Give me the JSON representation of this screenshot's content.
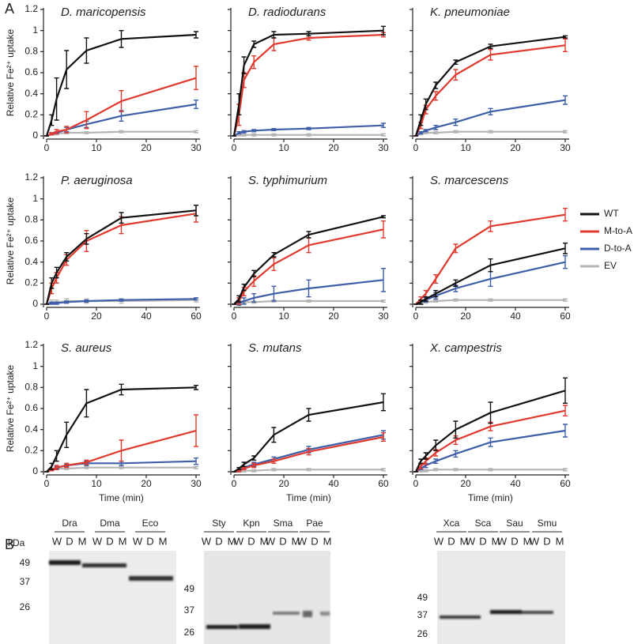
{
  "panel_labels": [
    "A",
    "B"
  ],
  "legend": [
    {
      "name": "WT",
      "color": "#111111"
    },
    {
      "name": "M-to-A",
      "color": "#e0392e"
    },
    {
      "name": "D-to-A",
      "color": "#3e5ea8"
    },
    {
      "name": "EV",
      "color": "#b4b4b4"
    }
  ],
  "chart_data": [
    {
      "type": "line",
      "title": "D. maricopensis",
      "ylabel": "Relative Fe²⁺ uptake",
      "x": [
        0,
        1,
        2,
        4,
        8,
        15,
        30
      ],
      "xlim": [
        0,
        30
      ],
      "xticks": [
        0,
        10,
        20,
        30
      ],
      "ylim": [
        0,
        1.2
      ],
      "yticks": [
        0,
        0.2,
        0.4,
        0.6,
        0.8,
        1,
        1.2
      ],
      "series": [
        {
          "values": [
            0,
            0.15,
            0.35,
            0.63,
            0.81,
            0.92,
            0.96
          ],
          "errors": [
            0,
            0.05,
            0.2,
            0.18,
            0.12,
            0.08,
            0.03
          ]
        },
        {
          "values": [
            0,
            0.02,
            0.04,
            0.06,
            0.15,
            0.33,
            0.55
          ],
          "errors": [
            0,
            0.01,
            0.02,
            0.03,
            0.08,
            0.1,
            0.11
          ]
        },
        {
          "values": [
            0,
            0.02,
            0.03,
            0.06,
            0.11,
            0.19,
            0.3
          ],
          "errors": [
            0,
            0.01,
            0.01,
            0.02,
            0.03,
            0.05,
            0.04
          ]
        },
        {
          "values": [
            0,
            0.02,
            0.02,
            0.03,
            0.03,
            0.04,
            0.04
          ],
          "errors": [
            0,
            0.01,
            0.01,
            0.01,
            0.01,
            0.01,
            0.01
          ]
        }
      ]
    },
    {
      "type": "line",
      "title": "D. radiodurans",
      "x": [
        0,
        1,
        2,
        4,
        8,
        15,
        30
      ],
      "xlim": [
        0,
        30
      ],
      "xticks": [
        0,
        10,
        20,
        30
      ],
      "ylim": [
        0,
        1.2
      ],
      "yticks": [
        0,
        0.2,
        0.4,
        0.6,
        0.8,
        1,
        1.2
      ],
      "series": [
        {
          "values": [
            0,
            0.3,
            0.67,
            0.87,
            0.96,
            0.97,
            1.0
          ],
          "errors": [
            0,
            0.1,
            0.08,
            0.03,
            0.03,
            0.02,
            0.04
          ]
        },
        {
          "values": [
            0,
            0.2,
            0.53,
            0.7,
            0.87,
            0.93,
            0.96
          ],
          "errors": [
            0,
            0.1,
            0.07,
            0.06,
            0.06,
            0.02,
            0.02
          ]
        },
        {
          "values": [
            0,
            0.03,
            0.04,
            0.05,
            0.06,
            0.07,
            0.1
          ],
          "errors": [
            0,
            0.01,
            0.01,
            0.01,
            0.01,
            0.01,
            0.02
          ]
        },
        {
          "values": [
            0,
            0.01,
            0.01,
            0.01,
            0.01,
            0.01,
            0.01
          ],
          "errors": [
            0,
            0.01,
            0.01,
            0.01,
            0.01,
            0.01,
            0.01
          ]
        }
      ]
    },
    {
      "type": "line",
      "title": "K. pneumoniae",
      "x": [
        0,
        1,
        2,
        4,
        8,
        15,
        30
      ],
      "xlim": [
        0,
        30
      ],
      "xticks": [
        0,
        10,
        20,
        30
      ],
      "ylim": [
        0,
        1.2
      ],
      "yticks": [
        0,
        0.2,
        0.4,
        0.6,
        0.8,
        1,
        1.2
      ],
      "series": [
        {
          "values": [
            0,
            0.15,
            0.3,
            0.48,
            0.7,
            0.85,
            0.94
          ],
          "errors": [
            0,
            0.05,
            0.05,
            0.03,
            0.02,
            0.02,
            0.01
          ]
        },
        {
          "values": [
            0,
            0.1,
            0.25,
            0.38,
            0.58,
            0.77,
            0.86
          ],
          "errors": [
            0,
            0.03,
            0.04,
            0.04,
            0.05,
            0.05,
            0.06
          ]
        },
        {
          "values": [
            0,
            0.03,
            0.05,
            0.08,
            0.13,
            0.23,
            0.34
          ],
          "errors": [
            0,
            0.01,
            0.01,
            0.02,
            0.03,
            0.03,
            0.04
          ]
        },
        {
          "values": [
            0,
            0.02,
            0.03,
            0.03,
            0.04,
            0.04,
            0.04
          ],
          "errors": [
            0,
            0.01,
            0.01,
            0.01,
            0.01,
            0.01,
            0.01
          ]
        }
      ]
    },
    {
      "type": "line",
      "title": "P. aeruginosa",
      "ylabel": "Relative Fe²⁺ uptake",
      "x": [
        0,
        2,
        4,
        8,
        16,
        30,
        60
      ],
      "xlim": [
        0,
        60
      ],
      "xticks": [
        0,
        20,
        40,
        60
      ],
      "ylim": [
        0,
        1.2
      ],
      "yticks": [
        0,
        0.2,
        0.4,
        0.6,
        0.8,
        1,
        1.2
      ],
      "series": [
        {
          "values": [
            0,
            0.2,
            0.3,
            0.45,
            0.62,
            0.82,
            0.89
          ],
          "errors": [
            0,
            0.05,
            0.05,
            0.04,
            0.05,
            0.05,
            0.05
          ]
        },
        {
          "values": [
            0,
            0.15,
            0.25,
            0.42,
            0.6,
            0.75,
            0.86
          ],
          "errors": [
            0,
            0.05,
            0.05,
            0.05,
            0.1,
            0.08,
            0.08
          ]
        },
        {
          "values": [
            0,
            0.01,
            0.01,
            0.02,
            0.03,
            0.04,
            0.05
          ],
          "errors": [
            0,
            0.01,
            0.01,
            0.01,
            0.01,
            0.01,
            0.01
          ]
        },
        {
          "values": [
            0,
            0.02,
            0.02,
            0.03,
            0.03,
            0.03,
            0.04
          ],
          "errors": [
            0,
            0.02,
            0.02,
            0.02,
            0.02,
            0.02,
            0.02
          ]
        }
      ]
    },
    {
      "type": "line",
      "title": "S. typhimurium",
      "x": [
        0,
        1,
        2,
        4,
        8,
        15,
        30
      ],
      "xlim": [
        0,
        30
      ],
      "xticks": [
        0,
        10,
        20,
        30
      ],
      "ylim": [
        0,
        1.2
      ],
      "yticks": [
        0,
        0.2,
        0.4,
        0.6,
        0.8,
        1,
        1.2
      ],
      "series": [
        {
          "values": [
            0,
            0.05,
            0.16,
            0.29,
            0.47,
            0.66,
            0.83
          ],
          "errors": [
            0,
            0.03,
            0.03,
            0.03,
            0.02,
            0.03,
            0.01
          ]
        },
        {
          "values": [
            0,
            0.03,
            0.12,
            0.22,
            0.38,
            0.56,
            0.71
          ],
          "errors": [
            0,
            0.03,
            0.04,
            0.05,
            0.06,
            0.07,
            0.08
          ]
        },
        {
          "values": [
            0,
            0.01,
            0.03,
            0.06,
            0.1,
            0.15,
            0.23
          ],
          "errors": [
            0,
            0.02,
            0.03,
            0.04,
            0.07,
            0.08,
            0.11
          ]
        },
        {
          "values": [
            0,
            0.01,
            0.02,
            0.02,
            0.03,
            0.03,
            0.03
          ],
          "errors": [
            0,
            0.01,
            0.01,
            0.01,
            0.01,
            0.01,
            0.01
          ]
        }
      ]
    },
    {
      "type": "line",
      "title": "S. marcescens",
      "x": [
        0,
        2,
        4,
        8,
        16,
        30,
        60
      ],
      "xlim": [
        0,
        60
      ],
      "xticks": [
        0,
        20,
        40,
        60
      ],
      "ylim": [
        0,
        1.2
      ],
      "yticks": [
        0,
        0.2,
        0.4,
        0.6,
        0.8,
        1,
        1.2
      ],
      "series": [
        {
          "values": [
            0,
            0.02,
            0.05,
            0.1,
            0.2,
            0.37,
            0.53
          ],
          "errors": [
            0,
            0.02,
            0.02,
            0.03,
            0.03,
            0.06,
            0.05
          ]
        },
        {
          "values": [
            0,
            0.05,
            0.1,
            0.24,
            0.53,
            0.74,
            0.85
          ],
          "errors": [
            0,
            0.02,
            0.03,
            0.04,
            0.04,
            0.05,
            0.06
          ]
        },
        {
          "values": [
            0,
            0.02,
            0.04,
            0.08,
            0.15,
            0.24,
            0.4
          ],
          "errors": [
            0,
            0.02,
            0.02,
            0.03,
            0.03,
            0.07,
            0.06
          ]
        },
        {
          "values": [
            0,
            0.02,
            0.02,
            0.03,
            0.04,
            0.04,
            0.04
          ],
          "errors": [
            0,
            0.01,
            0.01,
            0.01,
            0.01,
            0.01,
            0.01
          ]
        }
      ]
    },
    {
      "type": "line",
      "title": "S. aureus",
      "ylabel": "Relative Fe²⁺ uptake",
      "xlabel": "Time (min)",
      "x": [
        0,
        1,
        2,
        4,
        8,
        15,
        30
      ],
      "xlim": [
        0,
        30
      ],
      "xticks": [
        0,
        10,
        20,
        30
      ],
      "ylim": [
        0,
        1.2
      ],
      "yticks": [
        0,
        0.2,
        0.4,
        0.6,
        0.8,
        1,
        1.2
      ],
      "series": [
        {
          "values": [
            0,
            0.05,
            0.15,
            0.35,
            0.65,
            0.78,
            0.8
          ],
          "errors": [
            0,
            0.03,
            0.05,
            0.12,
            0.13,
            0.05,
            0.02
          ]
        },
        {
          "values": [
            0,
            0.02,
            0.04,
            0.06,
            0.09,
            0.2,
            0.39
          ],
          "errors": [
            0,
            0.01,
            0.02,
            0.02,
            0.02,
            0.1,
            0.15
          ]
        },
        {
          "values": [
            0,
            0.02,
            0.04,
            0.06,
            0.08,
            0.08,
            0.1
          ],
          "errors": [
            0,
            0.01,
            0.01,
            0.01,
            0.02,
            0.02,
            0.03
          ]
        },
        {
          "values": [
            0,
            0.02,
            0.03,
            0.03,
            0.04,
            0.04,
            0.04
          ],
          "errors": [
            0,
            0.01,
            0.01,
            0.01,
            0.01,
            0.01,
            0.01
          ]
        }
      ]
    },
    {
      "type": "line",
      "title": "S. mutans",
      "xlabel": "Time (min)",
      "x": [
        0,
        2,
        4,
        8,
        16,
        30,
        60
      ],
      "xlim": [
        0,
        60
      ],
      "xticks": [
        0,
        20,
        40,
        60
      ],
      "ylim": [
        0,
        1.2
      ],
      "yticks": [
        0,
        0.2,
        0.4,
        0.6,
        0.8,
        1,
        1.2
      ],
      "series": [
        {
          "values": [
            0,
            0.03,
            0.07,
            0.13,
            0.35,
            0.54,
            0.66
          ],
          "errors": [
            0,
            0.01,
            0.02,
            0.02,
            0.07,
            0.06,
            0.08
          ]
        },
        {
          "values": [
            0,
            0.01,
            0.03,
            0.06,
            0.1,
            0.19,
            0.33
          ],
          "errors": [
            0,
            0.01,
            0.01,
            0.02,
            0.02,
            0.03,
            0.04
          ]
        },
        {
          "values": [
            0,
            0.01,
            0.04,
            0.07,
            0.12,
            0.21,
            0.35
          ],
          "errors": [
            0,
            0.01,
            0.01,
            0.02,
            0.02,
            0.03,
            0.04
          ]
        },
        {
          "values": [
            0,
            0.01,
            0.01,
            0.01,
            0.02,
            0.02,
            0.02
          ],
          "errors": [
            0,
            0.01,
            0.01,
            0.01,
            0.01,
            0.01,
            0.01
          ]
        }
      ]
    },
    {
      "type": "line",
      "title": "X. campestris",
      "xlabel": "Time (min)",
      "x": [
        0,
        2,
        4,
        8,
        16,
        30,
        60
      ],
      "xlim": [
        0,
        60
      ],
      "xticks": [
        0,
        20,
        40,
        60
      ],
      "ylim": [
        0,
        1.2
      ],
      "yticks": [
        0,
        0.2,
        0.4,
        0.6,
        0.8,
        1,
        1.2
      ],
      "series": [
        {
          "values": [
            0,
            0.1,
            0.15,
            0.25,
            0.4,
            0.56,
            0.77
          ],
          "errors": [
            0,
            0.02,
            0.03,
            0.05,
            0.08,
            0.1,
            0.12
          ]
        },
        {
          "values": [
            0,
            0.05,
            0.1,
            0.18,
            0.3,
            0.43,
            0.58
          ],
          "errors": [
            0,
            0.02,
            0.03,
            0.03,
            0.04,
            0.04,
            0.05
          ]
        },
        {
          "values": [
            0,
            0.03,
            0.06,
            0.1,
            0.17,
            0.28,
            0.39
          ],
          "errors": [
            0,
            0.01,
            0.02,
            0.02,
            0.03,
            0.04,
            0.06
          ]
        },
        {
          "values": [
            0,
            0.01,
            0.01,
            0.02,
            0.02,
            0.02,
            0.02
          ],
          "errors": [
            0,
            0.01,
            0.01,
            0.01,
            0.01,
            0.01,
            0.01
          ]
        }
      ]
    }
  ],
  "blots": {
    "lanes": [
      "W",
      "D",
      "M"
    ],
    "unit": "kDa",
    "panels": [
      {
        "groups": [
          "Dra",
          "Dma",
          "Eco"
        ],
        "markers": [
          "49",
          "37",
          "26"
        ]
      },
      {
        "groups": [
          "Sty",
          "Kpn",
          "Sma",
          "Pae"
        ],
        "markers": [
          "49",
          "37",
          "26"
        ]
      },
      {
        "groups": [
          "Xca",
          "Sca",
          "Sau",
          "Smu"
        ],
        "markers": [
          "49",
          "37",
          "26"
        ]
      }
    ]
  }
}
